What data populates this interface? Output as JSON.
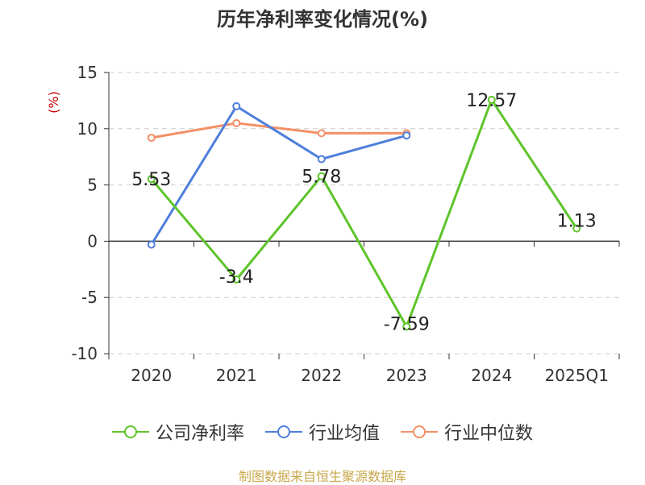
{
  "chart_data": {
    "type": "line",
    "title": "历年净利率变化情况(%)",
    "ylabel": "(%)",
    "categories": [
      "2020",
      "2021",
      "2022",
      "2023",
      "2024",
      "2025Q1"
    ],
    "ylim": [
      -10,
      15
    ],
    "yticks": [
      15,
      10,
      5,
      0,
      -5,
      -10
    ],
    "grid": true,
    "legend_position": "bottom",
    "series": [
      {
        "name": "公司净利率",
        "color": "#5ec42a",
        "values": [
          5.53,
          -3.4,
          5.78,
          -7.59,
          12.57,
          1.13
        ],
        "labels": [
          "5.53",
          "-3.4",
          "5.78",
          "-7.59",
          "12.57",
          "1.13"
        ]
      },
      {
        "name": "行业均值",
        "color": "#4f7fdc",
        "values": [
          -0.3,
          12.0,
          7.3,
          9.4,
          null,
          null
        ]
      },
      {
        "name": "行业中位数",
        "color": "#f39066",
        "values": [
          9.2,
          10.5,
          9.6,
          9.6,
          null,
          null
        ]
      }
    ],
    "source": "制图数据来自恒生聚源数据库"
  }
}
